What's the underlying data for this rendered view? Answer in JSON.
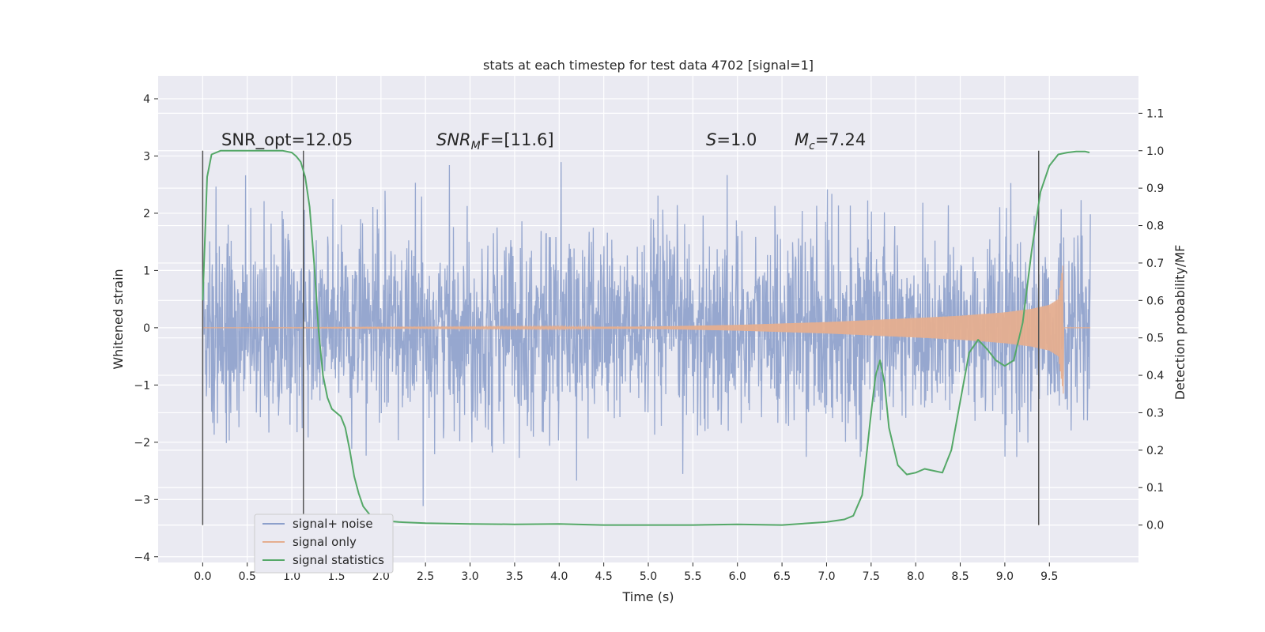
{
  "chart_data": {
    "type": "line",
    "title": "stats at each timestep for test data 4702 [signal=1]",
    "xlabel": "Time (s)",
    "ylabel": "Whitened strain",
    "y2label": "Detection probability/MF",
    "xlim": [
      -0.5,
      10.5
    ],
    "ylim": [
      -4.1,
      4.4
    ],
    "y2lim": [
      -0.1,
      1.2
    ],
    "xticks": [
      "0.0",
      "0.5",
      "1.0",
      "1.5",
      "2.0",
      "2.5",
      "3.0",
      "3.5",
      "4.0",
      "4.5",
      "5.0",
      "5.5",
      "6.0",
      "6.5",
      "7.0",
      "7.5",
      "8.0",
      "8.5",
      "9.0",
      "9.5"
    ],
    "yticks": [
      "4",
      "3",
      "2",
      "1",
      "0",
      "−1",
      "−2",
      "−3",
      "−4"
    ],
    "y2ticks": [
      "1.1",
      "1.0",
      "0.9",
      "0.8",
      "0.7",
      "0.6",
      "0.5",
      "0.4",
      "0.3",
      "0.2",
      "0.1",
      "0.0"
    ],
    "grid": true,
    "legend_position": "lower-left",
    "annotations": {
      "snr_opt": "SNR_opt=12.05",
      "snr_mf_base": "SNR",
      "snr_mf_sub": "M",
      "snr_mf_rest": "F=[11.6]",
      "s_base": "S",
      "s_rest": "=1.0",
      "mc_base": "M",
      "mc_sub": "c",
      "mc_rest": "=7.24"
    },
    "markers_x": [
      0.0,
      1.13,
      9.38
    ],
    "series": [
      {
        "name": "signal+ noise",
        "color": "#8da0cb",
        "noise_sigma": 0.85,
        "x_range": [
          0.0,
          9.96
        ]
      },
      {
        "name": "signal only",
        "color": "#e5ae8f",
        "envelope": [
          [
            0.0,
            0.0
          ],
          [
            5.0,
            0.02
          ],
          [
            6.0,
            0.05
          ],
          [
            7.0,
            0.1
          ],
          [
            8.0,
            0.17
          ],
          [
            8.5,
            0.21
          ],
          [
            9.0,
            0.27
          ],
          [
            9.3,
            0.33
          ],
          [
            9.5,
            0.4
          ],
          [
            9.6,
            0.5
          ],
          [
            9.66,
            1.2
          ]
        ],
        "x_range": [
          0.0,
          9.96
        ]
      },
      {
        "name": "signal statistics",
        "color": "#55a868",
        "x": [
          0.0,
          0.05,
          0.1,
          0.2,
          0.3,
          0.5,
          0.7,
          0.9,
          1.0,
          1.05,
          1.1,
          1.15,
          1.2,
          1.25,
          1.3,
          1.35,
          1.4,
          1.45,
          1.5,
          1.55,
          1.6,
          1.65,
          1.7,
          1.75,
          1.8,
          1.9,
          2.0,
          2.2,
          2.5,
          3.0,
          3.5,
          4.0,
          4.5,
          5.0,
          5.5,
          6.0,
          6.5,
          7.0,
          7.2,
          7.3,
          7.4,
          7.5,
          7.55,
          7.6,
          7.65,
          7.7,
          7.8,
          7.9,
          8.0,
          8.1,
          8.2,
          8.3,
          8.4,
          8.5,
          8.6,
          8.7,
          8.8,
          8.9,
          9.0,
          9.1,
          9.2,
          9.3,
          9.4,
          9.5,
          9.6,
          9.7,
          9.8,
          9.9,
          9.95
        ],
        "y": [
          0.6,
          0.93,
          0.99,
          1.0,
          1.0,
          1.0,
          1.0,
          1.0,
          0.995,
          0.985,
          0.97,
          0.93,
          0.85,
          0.7,
          0.52,
          0.4,
          0.34,
          0.31,
          0.3,
          0.29,
          0.26,
          0.2,
          0.13,
          0.085,
          0.05,
          0.02,
          0.012,
          0.008,
          0.005,
          0.003,
          0.002,
          0.003,
          0.0,
          0.0,
          0.0,
          0.002,
          0.0,
          0.008,
          0.015,
          0.025,
          0.08,
          0.3,
          0.4,
          0.44,
          0.38,
          0.26,
          0.16,
          0.135,
          0.14,
          0.15,
          0.145,
          0.14,
          0.2,
          0.33,
          0.46,
          0.495,
          0.47,
          0.44,
          0.425,
          0.44,
          0.54,
          0.73,
          0.89,
          0.96,
          0.99,
          0.995,
          0.998,
          0.998,
          0.995
        ]
      }
    ]
  }
}
